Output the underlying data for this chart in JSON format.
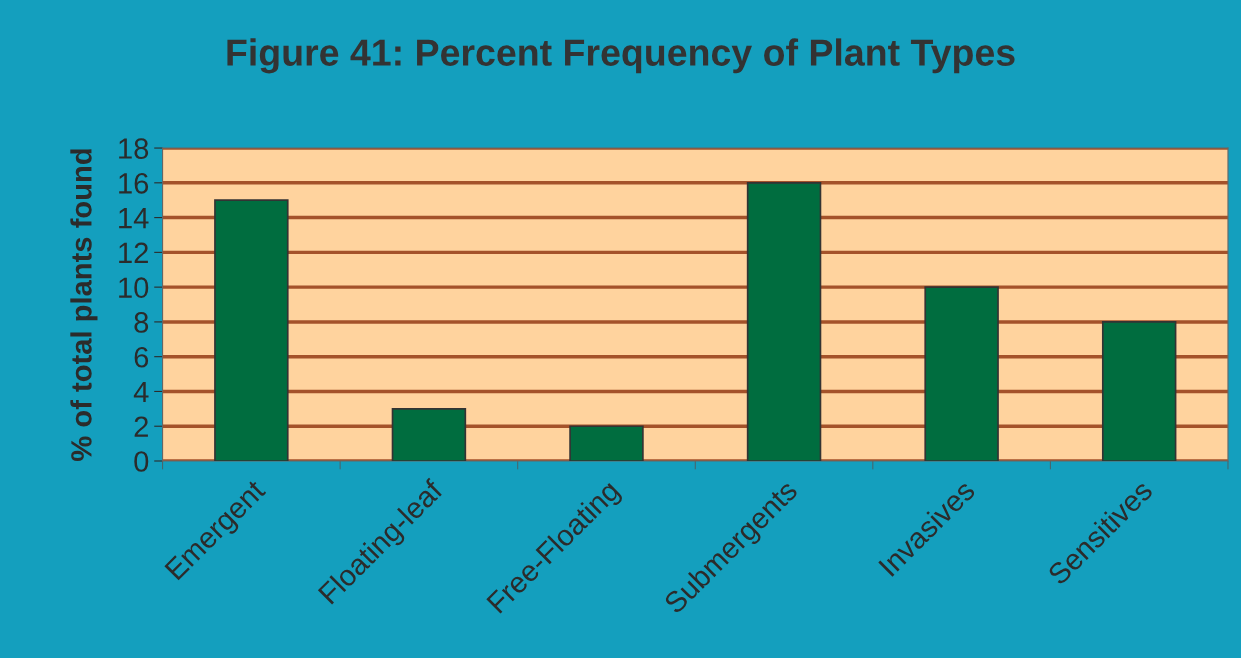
{
  "chart_data": {
    "type": "bar",
    "title": "Figure 41: Percent Frequency of Plant Types",
    "ylabel": "% of total plants found",
    "categories": [
      "Emergent",
      "Floating-leaf",
      "Free-Floating",
      "Submergents",
      "Invasives",
      "Sensitives"
    ],
    "values": [
      15,
      3,
      2,
      16,
      10,
      8
    ],
    "color": "#006d3f",
    "ylim": [
      0,
      18
    ],
    "yticks": [
      0,
      2,
      4,
      6,
      8,
      10,
      12,
      14,
      16,
      18
    ],
    "grid": "y",
    "legend": false
  }
}
